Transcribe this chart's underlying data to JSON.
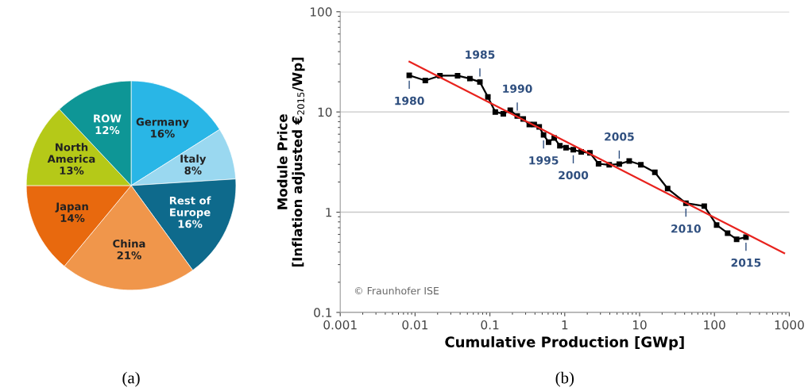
{
  "chart_data": [
    {
      "type": "pie",
      "categories": [
        "Germany",
        "Italy",
        "Rest of\nEurope",
        "China",
        "Japan",
        "North\nAmerica",
        "ROW"
      ],
      "values": [
        16,
        8,
        16,
        21,
        14,
        13,
        12
      ],
      "value_labels": [
        "16%",
        "8%",
        "16%",
        "21%",
        "14%",
        "13%",
        "12%"
      ],
      "colors": [
        "#29b6e6",
        "#9ad8f0",
        "#0e6a8c",
        "#f0964b",
        "#e8690e",
        "#b5c918",
        "#0e9696"
      ],
      "annotations": [
        "(a)"
      ]
    },
    {
      "type": "line",
      "xlabel": "Cumulative Production [GWp]",
      "ylabel": "Module Price\n[Inflation adjusted €$_{2015}$/Wp]",
      "log": "xy",
      "xlim": [
        0.001,
        1000
      ],
      "ylim": [
        0.1,
        100
      ],
      "xticks": [
        0.001,
        0.01,
        0.1,
        1,
        10,
        100,
        1000
      ],
      "yticks": [
        0.1,
        1,
        10,
        100
      ],
      "grid": "y",
      "marker": "square",
      "series": [
        {
          "color": "#000000",
          "x": [
            0.00836,
            0.0137,
            0.0215,
            0.037,
            0.054,
            0.0735,
            0.094,
            0.118,
            0.151,
            0.187,
            0.232,
            0.279,
            0.336,
            0.391,
            0.456,
            0.521,
            0.608,
            0.724,
            0.861,
            1.04,
            1.3,
            1.66,
            2.17,
            2.83,
            3.93,
            5.35,
            7.27,
            10.4,
            16.0,
            23.7,
            41.6,
            73.1,
            107,
            150,
            198,
            264
          ],
          "values": [
            23.2,
            20.6,
            23.0,
            23.0,
            21.5,
            19.9,
            14.1,
            10.0,
            9.6,
            10.4,
            9.1,
            8.5,
            7.5,
            7.5,
            7.1,
            5.9,
            5.0,
            5.5,
            4.6,
            4.4,
            4.2,
            4.0,
            3.9,
            3.04,
            2.97,
            3.02,
            3.24,
            2.97,
            2.5,
            1.72,
            1.23,
            1.15,
            0.745,
            0.618,
            0.537,
            0.563
          ]
        },
        {
          "type": "line",
          "color": "#e8231e",
          "marker": "none",
          "x": [
            0.0084,
            857
          ],
          "values": [
            31.7,
            0.39
          ]
        }
      ],
      "annotations": [
        {
          "text": "1980",
          "x": 0.00836,
          "y": 23.2
        },
        {
          "text": "1985",
          "x": 0.0735,
          "y": 19.9
        },
        {
          "text": "1990",
          "x": 0.232,
          "y": 9.1
        },
        {
          "text": "1995",
          "x": 0.521,
          "y": 5.9
        },
        {
          "text": "2000",
          "x": 1.3,
          "y": 4.2
        },
        {
          "text": "2005",
          "x": 5.35,
          "y": 3.02
        },
        {
          "text": "2010",
          "x": 41.6,
          "y": 1.23
        },
        {
          "text": "2015",
          "x": 264,
          "y": 0.563
        },
        "© Fraunhofer ISE",
        "(b)"
      ]
    }
  ]
}
